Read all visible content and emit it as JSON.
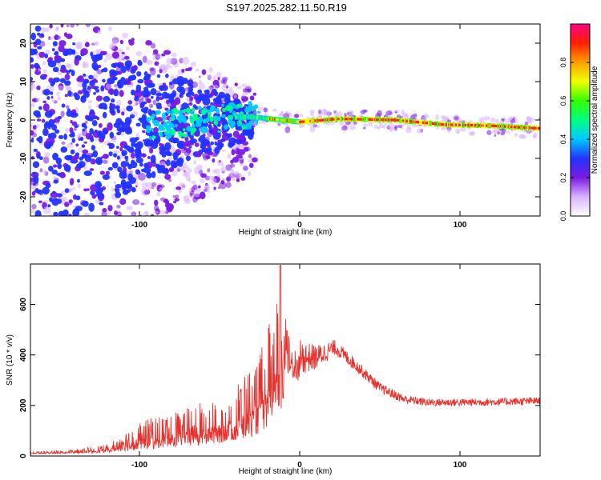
{
  "title": "S197.2025.282.11.50.R19",
  "chart_data": [
    {
      "type": "heatmap",
      "xlabel": "Height of straight line (km)",
      "ylabel": "Frequency (Hz)",
      "xlim": [
        -168,
        150
      ],
      "ylim": [
        -25,
        25
      ],
      "xticks": [
        -100,
        0,
        100
      ],
      "yticks": [
        -20,
        -10,
        0,
        10,
        20
      ],
      "xtick_labels": [
        "-100",
        "0",
        "100"
      ],
      "ytick_labels": [
        "-20",
        "-10",
        "0",
        "10",
        "20"
      ],
      "colorbar": {
        "label": "Normalized spectral amplitude",
        "range": [
          0,
          1
        ],
        "ticks": [
          0,
          0.2,
          0.4,
          0.6,
          0.8
        ],
        "tick_labels": [
          "0.0",
          "0.2",
          "0.4",
          "0.6",
          "0.8"
        ],
        "colors": [
          "#ffffff",
          "#d9b3ff",
          "#7a1ae0",
          "#2233ff",
          "#00c8ff",
          "#00ff80",
          "#33ff00",
          "#f0ff00",
          "#ffa000",
          "#ff2000",
          "#ff0088"
        ]
      },
      "ridge": {
        "description_points": [
          {
            "x": -30,
            "freq": 0.8
          },
          {
            "x": 0,
            "freq": -0.5
          },
          {
            "x": 25,
            "freq": 0.3
          },
          {
            "x": 60,
            "freq": 0.0
          },
          {
            "x": 90,
            "freq": -1.2
          },
          {
            "x": 120,
            "freq": -1.5
          },
          {
            "x": 150,
            "freq": -2.2
          }
        ]
      }
    },
    {
      "type": "line",
      "xlabel": "Height of straight line (km)",
      "ylabel": "SNR (10 * v/v)",
      "xlim": [
        -168,
        150
      ],
      "ylim": [
        0,
        760
      ],
      "xticks": [
        -100,
        0,
        100
      ],
      "yticks": [
        0,
        200,
        400,
        600
      ],
      "xtick_labels": [
        "-100",
        "0",
        "100"
      ],
      "ytick_labels": [
        "0",
        "200",
        "400",
        "600"
      ],
      "line_color": "#e8302c",
      "envelope": [
        {
          "x": -168,
          "base": 20,
          "amp": 5
        },
        {
          "x": -140,
          "base": 25,
          "amp": 10
        },
        {
          "x": -120,
          "base": 35,
          "amp": 20
        },
        {
          "x": -100,
          "base": 60,
          "amp": 70
        },
        {
          "x": -80,
          "base": 80,
          "amp": 90
        },
        {
          "x": -60,
          "base": 100,
          "amp": 110
        },
        {
          "x": -40,
          "base": 140,
          "amp": 140
        },
        {
          "x": -25,
          "base": 220,
          "amp": 200
        },
        {
          "x": -12,
          "base": 380,
          "amp": 320
        },
        {
          "x": -5,
          "base": 420,
          "amp": 120
        },
        {
          "x": 0,
          "base": 390,
          "amp": 70
        },
        {
          "x": 10,
          "base": 390,
          "amp": 50
        },
        {
          "x": 22,
          "base": 430,
          "amp": 30
        },
        {
          "x": 35,
          "base": 360,
          "amp": 25
        },
        {
          "x": 50,
          "base": 270,
          "amp": 20
        },
        {
          "x": 65,
          "base": 225,
          "amp": 18
        },
        {
          "x": 80,
          "base": 212,
          "amp": 15
        },
        {
          "x": 100,
          "base": 212,
          "amp": 15
        },
        {
          "x": 130,
          "base": 215,
          "amp": 15
        },
        {
          "x": 150,
          "base": 218,
          "amp": 15
        }
      ]
    }
  ]
}
